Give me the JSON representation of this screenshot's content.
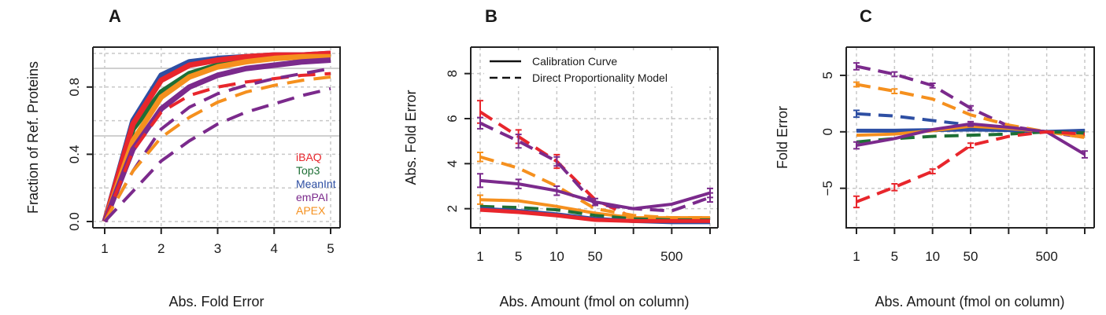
{
  "colors": {
    "iBAQ": "#e8262c",
    "Top3": "#1e6f35",
    "MeanInt": "#2e4fa3",
    "emPAI": "#7b2a8c",
    "APEX": "#f5901e"
  },
  "chart_data": [
    {
      "panel": "A",
      "type": "line",
      "xlabel": "Abs. Fold Error",
      "ylabel": "Fraction of Ref. Proteins",
      "xlim": [
        1,
        5
      ],
      "ylim": [
        0,
        1
      ],
      "x_ticks": [
        1,
        2,
        3,
        4,
        5
      ],
      "y_ticks": [
        0.0,
        0.4,
        0.8
      ],
      "y_tick_labels": [
        "0.0",
        "0.4",
        "0.8"
      ],
      "grid": true,
      "reference_lines_y": [
        0.5,
        0.9
      ],
      "legend": {
        "position": "bottom-right",
        "entries": [
          "iBAQ",
          "Top3",
          "MeanInt",
          "emPAI",
          "APEX"
        ]
      },
      "series": [
        {
          "name": "MeanInt",
          "style": "solid",
          "x": [
            1,
            1.5,
            2,
            2.5,
            3,
            3.5,
            4,
            4.5,
            5
          ],
          "y": [
            0,
            0.6,
            0.87,
            0.95,
            0.97,
            0.98,
            0.99,
            0.99,
            1.0
          ]
        },
        {
          "name": "Top3",
          "style": "solid",
          "x": [
            1,
            1.5,
            2,
            2.5,
            3,
            3.5,
            4,
            4.5,
            5
          ],
          "y": [
            0,
            0.55,
            0.77,
            0.88,
            0.93,
            0.96,
            0.97,
            0.98,
            0.99
          ]
        },
        {
          "name": "iBAQ",
          "style": "solid",
          "x": [
            1,
            1.5,
            2,
            2.5,
            3,
            3.5,
            4,
            4.5,
            5
          ],
          "y": [
            0,
            0.58,
            0.84,
            0.93,
            0.96,
            0.98,
            0.99,
            0.99,
            1.0
          ]
        },
        {
          "name": "APEX",
          "style": "solid",
          "x": [
            1,
            1.5,
            2,
            2.5,
            3,
            3.5,
            4,
            4.5,
            5
          ],
          "y": [
            0,
            0.48,
            0.74,
            0.86,
            0.92,
            0.95,
            0.97,
            0.98,
            0.98
          ]
        },
        {
          "name": "emPAI",
          "style": "solid",
          "x": [
            1,
            1.5,
            2,
            2.5,
            3,
            3.5,
            4,
            4.5,
            5
          ],
          "y": [
            0,
            0.43,
            0.67,
            0.8,
            0.87,
            0.91,
            0.93,
            0.95,
            0.96
          ]
        },
        {
          "name": "iBAQ",
          "style": "dashed",
          "x": [
            1,
            1.5,
            2,
            2.5,
            3,
            3.5,
            4,
            4.5,
            5
          ],
          "y": [
            0,
            0.42,
            0.65,
            0.75,
            0.8,
            0.83,
            0.85,
            0.87,
            0.88
          ]
        },
        {
          "name": "emPAI",
          "style": "dashed",
          "x": [
            1,
            1.5,
            2,
            2.5,
            3,
            3.5,
            4,
            4.5,
            5
          ],
          "y": [
            0,
            0.3,
            0.55,
            0.68,
            0.76,
            0.81,
            0.85,
            0.88,
            0.91
          ]
        },
        {
          "name": "APEX",
          "style": "dashed",
          "x": [
            1,
            1.5,
            2,
            2.5,
            3,
            3.5,
            4,
            4.5,
            5
          ],
          "y": [
            0,
            0.3,
            0.5,
            0.62,
            0.71,
            0.77,
            0.81,
            0.84,
            0.86
          ]
        },
        {
          "name": "emPAI",
          "style": "dashed",
          "x": [
            1,
            1.5,
            2,
            2.5,
            3,
            3.5,
            4,
            4.5,
            5
          ],
          "y": [
            0,
            0.18,
            0.36,
            0.48,
            0.58,
            0.65,
            0.7,
            0.75,
            0.79
          ]
        }
      ]
    },
    {
      "panel": "B",
      "type": "line",
      "xlabel": "Abs. Amount (fmol on column)",
      "ylabel": "Abs. Fold Error",
      "x_tick_labels": [
        "1",
        "5",
        "10",
        "50",
        "",
        "500",
        ""
      ],
      "ylim": [
        1.5,
        9
      ],
      "y_ticks": [
        2,
        4,
        6,
        8
      ],
      "grid": true,
      "legend": {
        "position": "top",
        "entries": [
          {
            "label": "Calibration Curve",
            "style": "solid"
          },
          {
            "label": "Direct Proportionality Model",
            "style": "dashed"
          }
        ]
      },
      "series": [
        {
          "name": "iBAQ",
          "style": "dashed",
          "y": [
            6.3,
            5.2,
            4.1,
            2.4,
            1.6,
            1.5,
            1.5
          ],
          "err": [
            0.5,
            0.3,
            0.3,
            0,
            0,
            0,
            0
          ]
        },
        {
          "name": "emPAI",
          "style": "dashed",
          "y": [
            5.8,
            5.0,
            4.1,
            2.2,
            2.0,
            1.9,
            2.5
          ],
          "err": [
            0.25,
            0.3,
            0.2,
            0,
            0,
            0,
            0.2
          ]
        },
        {
          "name": "APEX",
          "style": "dashed",
          "y": [
            4.3,
            3.8,
            3.0,
            2.0,
            1.7,
            1.6,
            1.6
          ],
          "err": [
            0.2,
            0,
            0,
            0,
            0,
            0,
            0
          ]
        },
        {
          "name": "emPAI",
          "style": "solid",
          "y": [
            3.25,
            3.1,
            2.8,
            2.3,
            2.0,
            2.2,
            2.7
          ],
          "err": [
            0.3,
            0.2,
            0.2,
            0.15,
            0,
            0,
            0.2
          ]
        },
        {
          "name": "APEX",
          "style": "solid",
          "y": [
            2.4,
            2.35,
            2.1,
            1.8,
            1.6,
            1.6,
            1.6
          ],
          "err": [
            0.2,
            0,
            0,
            0,
            0,
            0,
            0
          ]
        },
        {
          "name": "Top3",
          "style": "dashed",
          "y": [
            2.1,
            2.05,
            1.95,
            1.7,
            1.55,
            1.5,
            1.5
          ],
          "err": [
            0,
            0,
            0,
            0,
            0,
            0,
            0
          ]
        },
        {
          "name": "MeanInt",
          "style": "solid",
          "y": [
            2.0,
            1.9,
            1.75,
            1.55,
            1.45,
            1.4,
            1.4
          ],
          "err": [
            0,
            0,
            0,
            0,
            0,
            0,
            0
          ]
        },
        {
          "name": "iBAQ",
          "style": "solid",
          "y": [
            1.95,
            1.85,
            1.7,
            1.5,
            1.45,
            1.45,
            1.45
          ],
          "err": [
            0,
            0,
            0,
            0,
            0,
            0,
            0
          ]
        }
      ]
    },
    {
      "panel": "C",
      "type": "line",
      "xlabel": "Abs. Amount (fmol on column)",
      "ylabel": "Fold Error",
      "x_tick_labels": [
        "1",
        "5",
        "10",
        "50",
        "",
        "500",
        ""
      ],
      "ylim": [
        -8.5,
        7.5
      ],
      "y_ticks": [
        -5,
        0,
        5
      ],
      "y_tick_labels": [
        "−5",
        "0",
        "5"
      ],
      "grid": true,
      "series": [
        {
          "name": "emPAI",
          "style": "dashed",
          "y": [
            5.8,
            5.1,
            4.1,
            2.1,
            0.5,
            0,
            -0.5
          ],
          "err": [
            0.3,
            0.2,
            0.2,
            0.2,
            0,
            0,
            0
          ]
        },
        {
          "name": "APEX",
          "style": "dashed",
          "y": [
            4.2,
            3.6,
            2.9,
            1.5,
            0.6,
            0,
            -0.5
          ],
          "err": [
            0.2,
            0.2,
            0,
            0,
            0,
            0,
            0
          ]
        },
        {
          "name": "MeanInt",
          "style": "dashed",
          "y": [
            1.6,
            1.4,
            1.0,
            0.6,
            0.3,
            0,
            -0.2
          ],
          "err": [
            0.3,
            0,
            0,
            0,
            0,
            0,
            0
          ]
        },
        {
          "name": "MeanInt",
          "style": "solid",
          "y": [
            0.1,
            0.1,
            0.15,
            0.2,
            0.15,
            0,
            0.1
          ],
          "err": [
            0,
            0,
            0,
            0,
            0,
            0,
            0
          ]
        },
        {
          "name": "APEX",
          "style": "solid",
          "y": [
            -0.3,
            -0.2,
            0.1,
            0.5,
            0.3,
            0,
            -0.4
          ],
          "err": [
            0,
            0,
            0,
            0,
            0,
            0,
            0
          ]
        },
        {
          "name": "Top3",
          "style": "dashed",
          "y": [
            -0.9,
            -0.6,
            -0.4,
            -0.3,
            -0.2,
            0,
            -0.1
          ],
          "err": [
            0,
            0,
            0,
            0,
            0,
            0,
            0
          ]
        },
        {
          "name": "emPAI",
          "style": "solid",
          "y": [
            -1.2,
            -0.6,
            0.2,
            0.7,
            0.4,
            0,
            -2.0
          ],
          "err": [
            0.3,
            0,
            0,
            0.2,
            0,
            0,
            0.3
          ]
        },
        {
          "name": "iBAQ",
          "style": "dashed",
          "y": [
            -6.2,
            -4.9,
            -3.5,
            -1.2,
            -0.4,
            0,
            -0.2
          ],
          "err": [
            0.5,
            0.3,
            0.2,
            0.2,
            0,
            0,
            0
          ]
        }
      ]
    }
  ]
}
